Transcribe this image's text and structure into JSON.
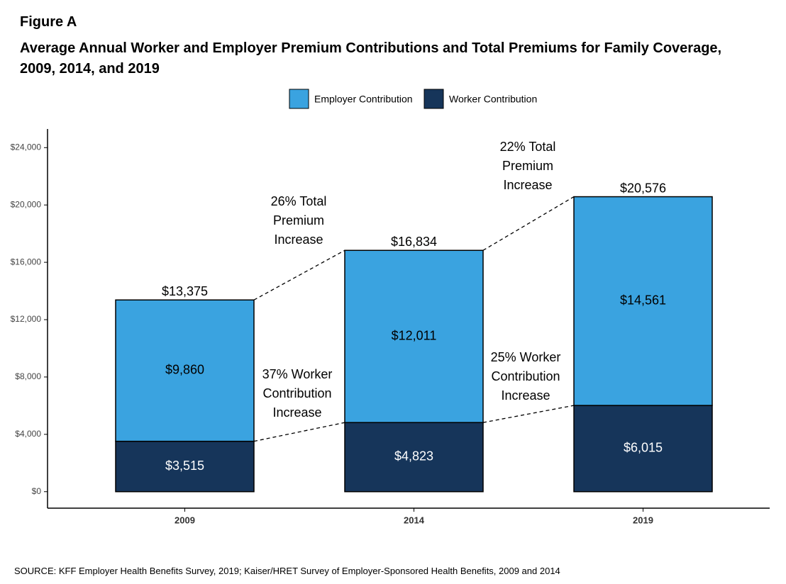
{
  "label": "Figure A",
  "chart_data": {
    "type": "stacked-bar",
    "title": "Average Annual Worker and Employer Premium Contributions and Total Premiums for Family Coverage, 2009, 2014, and 2019",
    "categories": [
      "2009",
      "2014",
      "2019"
    ],
    "series": [
      {
        "name": "Employer Contribution",
        "color": "#3aa3e0",
        "values": [
          9860,
          12011,
          14561
        ],
        "value_labels": [
          "$9,860",
          "$12,011",
          "$14,561"
        ]
      },
      {
        "name": "Worker Contribution",
        "color": "#16355a",
        "values": [
          3515,
          4823,
          6015
        ],
        "value_labels": [
          "$3,515",
          "$4,823",
          "$6,015"
        ]
      }
    ],
    "totals": [
      13375,
      16834,
      20576
    ],
    "total_labels": [
      "$13,375",
      "$16,834",
      "$20,576"
    ],
    "annotations": [
      [
        "26% Total",
        "Premium",
        "Increase"
      ],
      [
        "22% Total",
        "Premium",
        "Increase"
      ],
      [
        "37% Worker",
        "Contribution",
        "Increase"
      ],
      [
        "25% Worker",
        "Contribution",
        "Increase"
      ]
    ],
    "ylim": [
      -1150,
      25300
    ],
    "yticks": [
      {
        "value": 0,
        "label": "$0"
      },
      {
        "value": 4000,
        "label": "$4,000"
      },
      {
        "value": 8000,
        "label": "$8,000"
      },
      {
        "value": 12000,
        "label": "$12,000"
      },
      {
        "value": 16000,
        "label": "$16,000"
      },
      {
        "value": 20000,
        "label": "$20,000"
      },
      {
        "value": 24000,
        "label": "$24,000"
      }
    ],
    "legend": "top"
  },
  "source": "SOURCE: KFF Employer Health Benefits Survey, 2019; Kaiser/HRET Survey of Employer-Sponsored Health Benefits, 2009 and 2014"
}
